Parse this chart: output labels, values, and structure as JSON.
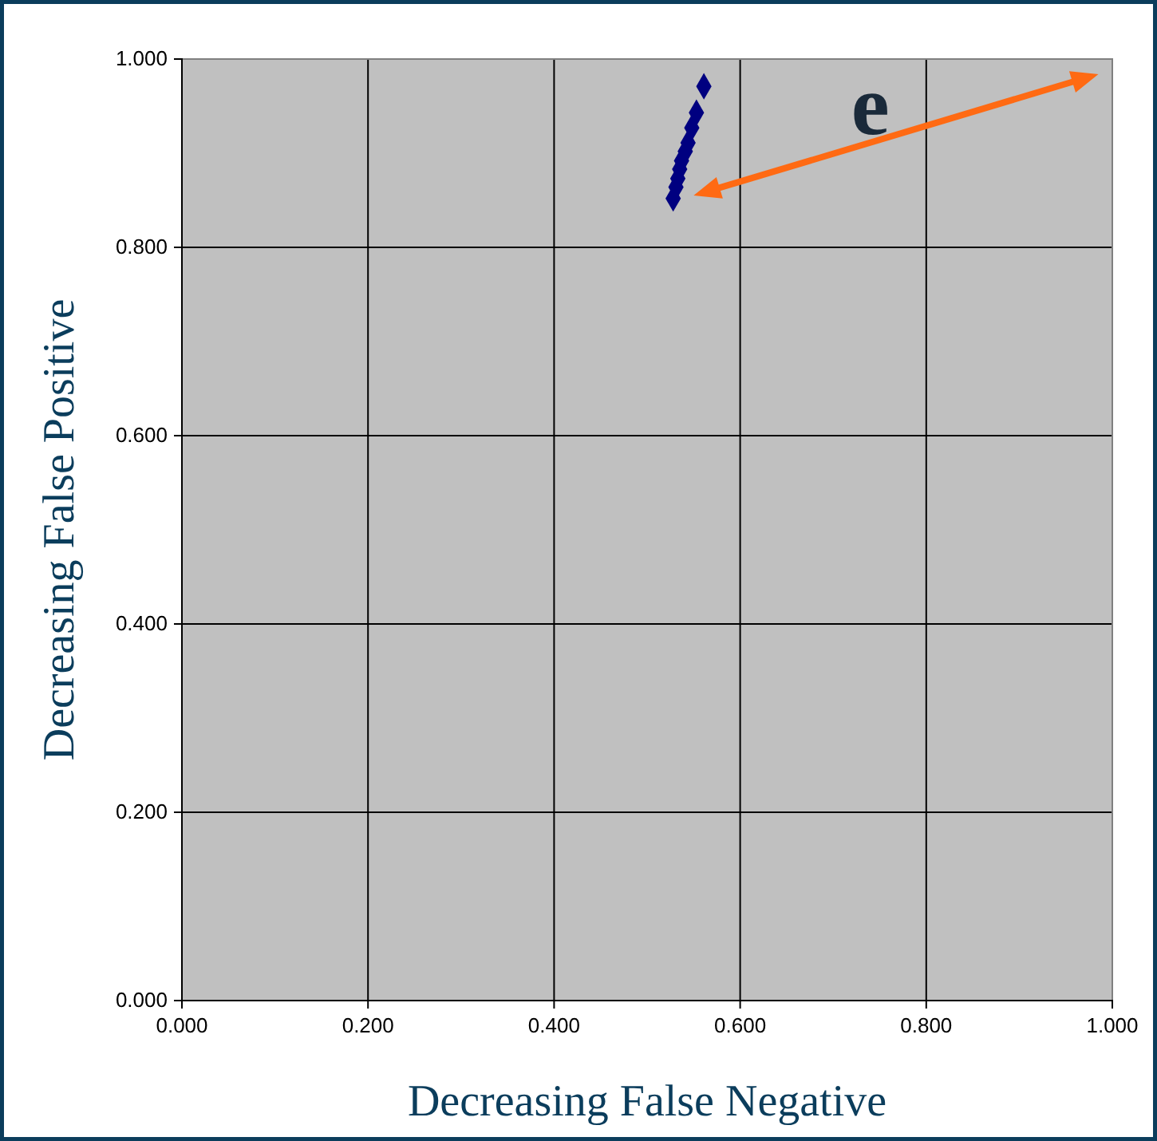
{
  "chart_data": {
    "type": "scatter",
    "xlabel": "Decreasing False Negative",
    "ylabel": "Decreasing False Positive",
    "x": [
      0.561,
      0.553,
      0.548,
      0.544,
      0.541,
      0.537,
      0.535,
      0.533,
      0.531,
      0.528
    ],
    "series": [
      {
        "color": "#000080",
        "values": [
          0.971,
          0.943,
          0.927,
          0.911,
          0.902,
          0.892,
          0.883,
          0.873,
          0.864,
          0.852
        ]
      }
    ],
    "xlim": [
      0,
      1
    ],
    "ylim": [
      0,
      1
    ],
    "xticks": [
      {
        "value": 0,
        "label": "0.000"
      },
      {
        "value": 0.2,
        "label": "0.200"
      },
      {
        "value": 0.4,
        "label": "0.400"
      },
      {
        "value": 0.6,
        "label": "0.600"
      },
      {
        "value": 0.8,
        "label": "0.800"
      },
      {
        "value": 1,
        "label": "1.000"
      }
    ],
    "yticks": [
      {
        "value": 0,
        "label": "0.000"
      },
      {
        "value": 0.2,
        "label": "0.200"
      },
      {
        "value": 0.4,
        "label": "0.400"
      },
      {
        "value": 0.6,
        "label": "0.600"
      },
      {
        "value": 0.8,
        "label": "0.800"
      },
      {
        "value": 1,
        "label": "1.000"
      }
    ],
    "grid": true,
    "marker": "diamond",
    "annotations": [
      "e"
    ]
  }
}
